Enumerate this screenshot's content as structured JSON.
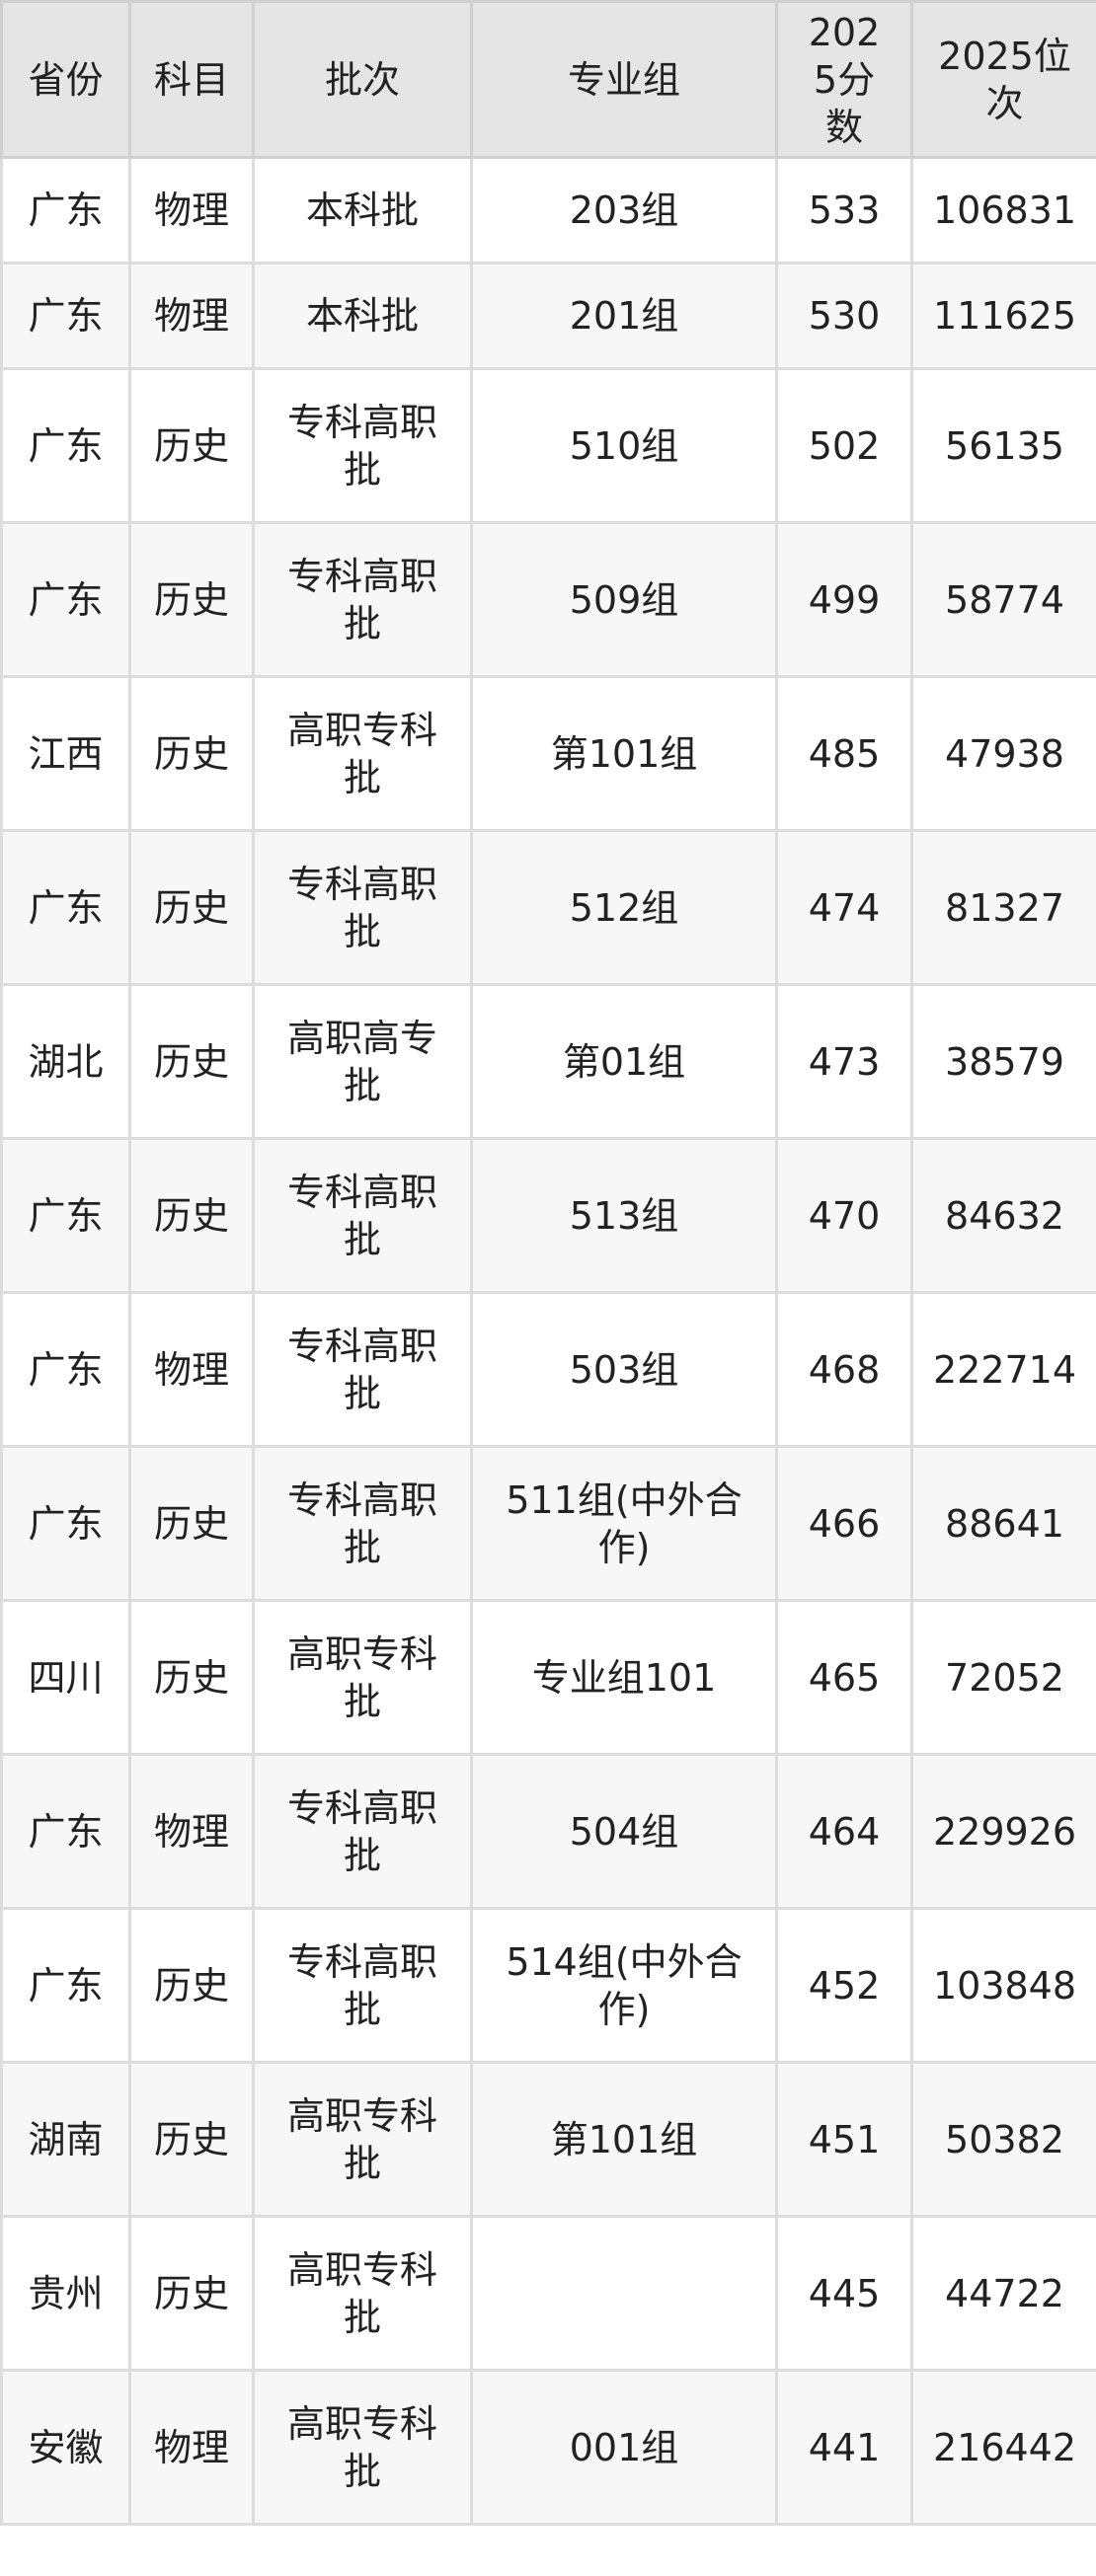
{
  "table": {
    "headers": [
      "省份",
      "科目",
      "批次",
      "专业组",
      "2025分数",
      "2025位次"
    ],
    "rows": [
      [
        "广东",
        "物理",
        "本科批",
        "203组",
        "533",
        "106831"
      ],
      [
        "广东",
        "物理",
        "本科批",
        "201组",
        "530",
        "111625"
      ],
      [
        "广东",
        "历史",
        "专科高职批",
        "510组",
        "502",
        "56135"
      ],
      [
        "广东",
        "历史",
        "专科高职批",
        "509组",
        "499",
        "58774"
      ],
      [
        "江西",
        "历史",
        "高职专科批",
        "第101组",
        "485",
        "47938"
      ],
      [
        "广东",
        "历史",
        "专科高职批",
        "512组",
        "474",
        "81327"
      ],
      [
        "湖北",
        "历史",
        "高职高专批",
        "第01组",
        "473",
        "38579"
      ],
      [
        "广东",
        "历史",
        "专科高职批",
        "513组",
        "470",
        "84632"
      ],
      [
        "广东",
        "物理",
        "专科高职批",
        "503组",
        "468",
        "222714"
      ],
      [
        "广东",
        "历史",
        "专科高职批",
        "511组(中外合作)",
        "466",
        "88641"
      ],
      [
        "四川",
        "历史",
        "高职专科批",
        "专业组101",
        "465",
        "72052"
      ],
      [
        "广东",
        "物理",
        "专科高职批",
        "504组",
        "464",
        "229926"
      ],
      [
        "广东",
        "历史",
        "专科高职批",
        "514组(中外合作)",
        "452",
        "103848"
      ],
      [
        "湖南",
        "历史",
        "高职专科批",
        "第101组",
        "451",
        "50382"
      ],
      [
        "贵州",
        "历史",
        "高职专科批",
        "",
        "445",
        "44722"
      ],
      [
        "安徽",
        "物理",
        "高职专科批",
        "001组",
        "441",
        "216442"
      ]
    ]
  }
}
